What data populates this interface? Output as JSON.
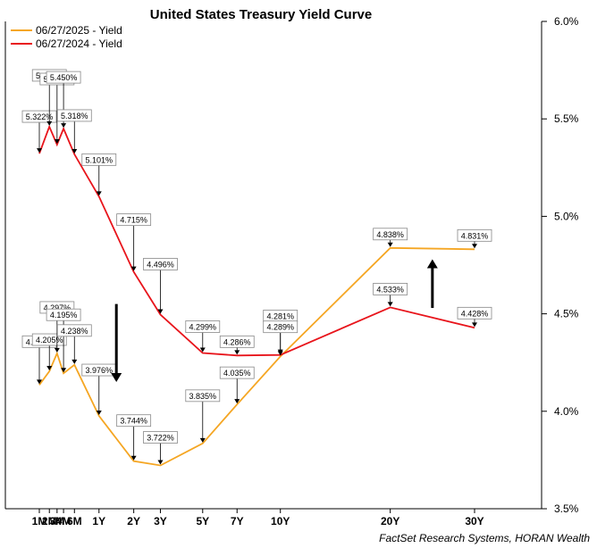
{
  "chart_data": {
    "type": "line",
    "title": "United States Treasury Yield Curve",
    "source": "FactSet Research Systems, HORAN Wealth",
    "x": [
      "1M",
      "2M",
      "3M",
      "4M",
      "6M",
      "1Y",
      "2Y",
      "3Y",
      "5Y",
      "7Y",
      "10Y",
      "20Y",
      "30Y"
    ],
    "x_years": [
      0.0833,
      0.1667,
      0.25,
      0.3333,
      0.5,
      1,
      2,
      3,
      5,
      7,
      10,
      20,
      30
    ],
    "ylim": [
      3.5,
      6.0
    ],
    "yticks": [
      "3.5%",
      "4.0%",
      "4.5%",
      "5.0%",
      "5.5%",
      "6.0%"
    ],
    "ytick_values": [
      3.5,
      4.0,
      4.5,
      5.0,
      5.5,
      6.0
    ],
    "y_axis_position": "right",
    "grid": false,
    "legend_position": "top-left",
    "series": [
      {
        "name": "06/27/2025 - Yield",
        "color": "#f5a623",
        "values": [
          4.135,
          4.205,
          4.297,
          4.195,
          4.238,
          3.976,
          3.744,
          3.722,
          3.835,
          4.035,
          4.281,
          4.838,
          4.831
        ],
        "labels": [
          "4.135%",
          "4.205%",
          "4.297%",
          "4.195%",
          "4.238%",
          "3.976%",
          "3.744%",
          "3.722%",
          "3.835%",
          "4.035%",
          "4.281%",
          "4.838%",
          "4.831%"
        ]
      },
      {
        "name": "06/27/2024 - Yield",
        "color": "#e8141b",
        "values": [
          5.322,
          5.46,
          5.368,
          5.45,
          5.318,
          5.101,
          4.715,
          4.496,
          4.299,
          4.286,
          4.289,
          4.533,
          4.428
        ],
        "labels": [
          "5.322%",
          "5.460%",
          "5.368%",
          "5.450%",
          "5.318%",
          "5.101%",
          "4.715%",
          "4.496%",
          "4.299%",
          "4.286%",
          "4.289%",
          "4.533%",
          "4.428%"
        ]
      }
    ],
    "annotations": [
      {
        "type": "arrow",
        "direction": "down",
        "x_between": [
          "1Y",
          "2Y"
        ],
        "y_from": 4.55,
        "y_to": 4.15
      },
      {
        "type": "arrow",
        "direction": "up",
        "x_between": [
          "20Y",
          "30Y"
        ],
        "y_from": 4.53,
        "y_to": 4.78
      }
    ]
  }
}
